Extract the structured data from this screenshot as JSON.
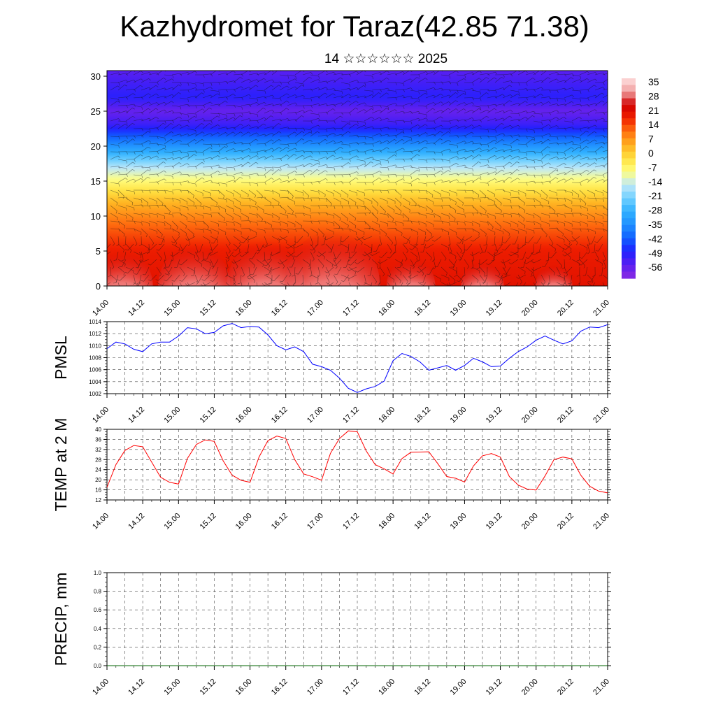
{
  "title": "Kazhydromet for Taraz(42.85 71.38)",
  "subtitle": "14 ☆☆☆☆☆☆ 2025",
  "time_labels": [
    "14.00",
    "14.12",
    "15.00",
    "15.12",
    "16.00",
    "16.12",
    "17.00",
    "17.12",
    "18.00",
    "18.12",
    "19.00",
    "19.12",
    "20.00",
    "20.12",
    "21.00"
  ],
  "colors": {
    "pmsl_line": "#0000ff",
    "temp_line": "#ff0000",
    "precip_line": "#006400",
    "frame": "#000000"
  },
  "chart_data": [
    {
      "id": "cross_section",
      "type": "heatmap",
      "title": "",
      "xlabel": "",
      "ylabel": "",
      "x_ticks": [
        "14.00",
        "14.12",
        "15.00",
        "15.12",
        "16.00",
        "16.12",
        "17.00",
        "17.12",
        "18.00",
        "18.12",
        "19.00",
        "19.12",
        "20.00",
        "20.12",
        "21.00"
      ],
      "y_ticks": [
        0,
        5,
        10,
        15,
        20,
        25,
        30
      ],
      "ylim": [
        0,
        30.8
      ],
      "colorbar_labels": [
        "35",
        "28",
        "21",
        "14",
        "7",
        "0",
        "-7",
        "-14",
        "-21",
        "-28",
        "-35",
        "-42",
        "-49",
        "-56"
      ],
      "colorbar_range": [
        -63,
        42
      ],
      "colormap": [
        {
          "v": -63,
          "c": "#8a2be2"
        },
        {
          "v": -56,
          "c": "#5a1ff0"
        },
        {
          "v": -49,
          "c": "#2020ff"
        },
        {
          "v": -42,
          "c": "#1060ff"
        },
        {
          "v": -35,
          "c": "#2090ff"
        },
        {
          "v": -28,
          "c": "#30b0ff"
        },
        {
          "v": -21,
          "c": "#70d0ff"
        },
        {
          "v": -14,
          "c": "#c0e8f8"
        },
        {
          "v": -7,
          "c": "#ffff80"
        },
        {
          "v": 0,
          "c": "#ffe040"
        },
        {
          "v": 7,
          "c": "#ffb020"
        },
        {
          "v": 14,
          "c": "#ff7010"
        },
        {
          "v": 21,
          "c": "#f02000"
        },
        {
          "v": 28,
          "c": "#d00000"
        },
        {
          "v": 35,
          "c": "#f0a0a0"
        },
        {
          "v": 42,
          "c": "#ffe0e0"
        }
      ],
      "profile": [
        {
          "h": 0,
          "t": 24
        },
        {
          "h": 5,
          "t": 22
        },
        {
          "h": 9,
          "t": 14
        },
        {
          "h": 12,
          "t": 6
        },
        {
          "h": 15,
          "t": -6
        },
        {
          "h": 17,
          "t": -15
        },
        {
          "h": 20,
          "t": -34
        },
        {
          "h": 23,
          "t": -52
        },
        {
          "h": 25,
          "t": -58
        },
        {
          "h": 27,
          "t": -50
        },
        {
          "h": 30.8,
          "t": -56
        }
      ],
      "warm_domes": [
        {
          "day": 14.22,
          "peak": 34
        },
        {
          "day": 15.22,
          "peak": 36
        },
        {
          "day": 16.22,
          "peak": 37
        },
        {
          "day": 17.15,
          "peak": 40
        },
        {
          "day": 18.25,
          "peak": 32
        },
        {
          "day": 19.25,
          "peak": 31
        },
        {
          "day": 20.25,
          "peak": 30
        }
      ]
    },
    {
      "id": "pmsl",
      "type": "line",
      "ylabel": "PMSL",
      "ylim": [
        1002,
        1014
      ],
      "y_ticks": [
        1002,
        1004,
        1006,
        1008,
        1010,
        1012,
        1014
      ],
      "x_ticks": [
        "14.00",
        "14.12",
        "15.00",
        "15.12",
        "16.00",
        "16.12",
        "17.00",
        "17.12",
        "18.00",
        "18.12",
        "19.00",
        "19.12",
        "20.00",
        "20.12",
        "21.00"
      ],
      "grid": true,
      "series": [
        {
          "values": [
            {
              "x": 14.0,
              "y": 1009.5
            },
            {
              "x": 14.125,
              "y": 1010.6
            },
            {
              "x": 14.25,
              "y": 1010.3
            },
            {
              "x": 14.375,
              "y": 1009.4
            },
            {
              "x": 14.5,
              "y": 1009.0
            },
            {
              "x": 14.625,
              "y": 1010.3
            },
            {
              "x": 14.75,
              "y": 1010.6
            },
            {
              "x": 14.875,
              "y": 1010.6
            },
            {
              "x": 15.0,
              "y": 1011.6
            },
            {
              "x": 15.125,
              "y": 1013.0
            },
            {
              "x": 15.25,
              "y": 1012.8
            },
            {
              "x": 15.375,
              "y": 1012.0
            },
            {
              "x": 15.5,
              "y": 1012.2
            },
            {
              "x": 15.625,
              "y": 1013.3
            },
            {
              "x": 15.75,
              "y": 1013.7
            },
            {
              "x": 15.875,
              "y": 1013.0
            },
            {
              "x": 16.0,
              "y": 1013.2
            },
            {
              "x": 16.125,
              "y": 1013.1
            },
            {
              "x": 16.25,
              "y": 1011.8
            },
            {
              "x": 16.375,
              "y": 1010.0
            },
            {
              "x": 16.5,
              "y": 1009.3
            },
            {
              "x": 16.625,
              "y": 1009.8
            },
            {
              "x": 16.75,
              "y": 1009.0
            },
            {
              "x": 16.875,
              "y": 1006.9
            },
            {
              "x": 17.0,
              "y": 1006.5
            },
            {
              "x": 17.125,
              "y": 1005.9
            },
            {
              "x": 17.25,
              "y": 1004.6
            },
            {
              "x": 17.375,
              "y": 1002.9
            },
            {
              "x": 17.5,
              "y": 1002.2
            },
            {
              "x": 17.625,
              "y": 1002.8
            },
            {
              "x": 17.75,
              "y": 1003.2
            },
            {
              "x": 17.875,
              "y": 1004.1
            },
            {
              "x": 18.0,
              "y": 1007.5
            },
            {
              "x": 18.125,
              "y": 1008.7
            },
            {
              "x": 18.25,
              "y": 1008.2
            },
            {
              "x": 18.375,
              "y": 1007.3
            },
            {
              "x": 18.5,
              "y": 1005.9
            },
            {
              "x": 18.625,
              "y": 1006.3
            },
            {
              "x": 18.75,
              "y": 1006.7
            },
            {
              "x": 18.875,
              "y": 1005.9
            },
            {
              "x": 19.0,
              "y": 1006.7
            },
            {
              "x": 19.125,
              "y": 1007.9
            },
            {
              "x": 19.25,
              "y": 1007.3
            },
            {
              "x": 19.375,
              "y": 1006.5
            },
            {
              "x": 19.5,
              "y": 1006.6
            },
            {
              "x": 19.625,
              "y": 1007.9
            },
            {
              "x": 19.75,
              "y": 1009.0
            },
            {
              "x": 19.875,
              "y": 1009.8
            },
            {
              "x": 20.0,
              "y": 1010.9
            },
            {
              "x": 20.125,
              "y": 1011.6
            },
            {
              "x": 20.25,
              "y": 1010.9
            },
            {
              "x": 20.375,
              "y": 1010.3
            },
            {
              "x": 20.5,
              "y": 1010.8
            },
            {
              "x": 20.625,
              "y": 1012.4
            },
            {
              "x": 20.75,
              "y": 1013.1
            },
            {
              "x": 20.875,
              "y": 1013.0
            },
            {
              "x": 21.0,
              "y": 1013.5
            }
          ]
        }
      ]
    },
    {
      "id": "temp2m",
      "type": "line",
      "ylabel": "TEMP at 2 M",
      "ylim": [
        12,
        40
      ],
      "y_ticks": [
        12,
        16,
        20,
        24,
        28,
        32,
        36,
        40
      ],
      "x_ticks": [
        "14.00",
        "14.12",
        "15.00",
        "15.12",
        "16.00",
        "16.12",
        "17.00",
        "17.12",
        "18.00",
        "18.12",
        "19.00",
        "19.12",
        "20.00",
        "20.12",
        "21.00"
      ],
      "grid": true,
      "series": [
        {
          "values": [
            {
              "x": 14.0,
              "y": 17.0
            },
            {
              "x": 14.125,
              "y": 26.0
            },
            {
              "x": 14.25,
              "y": 31.6
            },
            {
              "x": 14.375,
              "y": 33.6
            },
            {
              "x": 14.5,
              "y": 33.1
            },
            {
              "x": 14.625,
              "y": 27.0
            },
            {
              "x": 14.75,
              "y": 21.0
            },
            {
              "x": 14.875,
              "y": 19.0
            },
            {
              "x": 15.0,
              "y": 18.3
            },
            {
              "x": 15.125,
              "y": 28.5
            },
            {
              "x": 15.25,
              "y": 34.0
            },
            {
              "x": 15.375,
              "y": 35.8
            },
            {
              "x": 15.5,
              "y": 35.2
            },
            {
              "x": 15.625,
              "y": 27.5
            },
            {
              "x": 15.75,
              "y": 21.8
            },
            {
              "x": 15.875,
              "y": 19.8
            },
            {
              "x": 16.0,
              "y": 19.0
            },
            {
              "x": 16.125,
              "y": 29.0
            },
            {
              "x": 16.25,
              "y": 35.5
            },
            {
              "x": 16.375,
              "y": 37.3
            },
            {
              "x": 16.5,
              "y": 36.4
            },
            {
              "x": 16.625,
              "y": 28.0
            },
            {
              "x": 16.75,
              "y": 22.3
            },
            {
              "x": 16.875,
              "y": 21.2
            },
            {
              "x": 17.0,
              "y": 19.8
            },
            {
              "x": 17.125,
              "y": 30.5
            },
            {
              "x": 17.25,
              "y": 36.3
            },
            {
              "x": 17.375,
              "y": 39.4
            },
            {
              "x": 17.5,
              "y": 39.0
            },
            {
              "x": 17.625,
              "y": 31.4
            },
            {
              "x": 17.75,
              "y": 26.0
            },
            {
              "x": 17.875,
              "y": 24.3
            },
            {
              "x": 18.0,
              "y": 22.3
            },
            {
              "x": 18.125,
              "y": 28.4
            },
            {
              "x": 18.25,
              "y": 30.9
            },
            {
              "x": 18.375,
              "y": 31.0
            },
            {
              "x": 18.5,
              "y": 31.1
            },
            {
              "x": 18.625,
              "y": 26.4
            },
            {
              "x": 18.75,
              "y": 21.3
            },
            {
              "x": 18.875,
              "y": 20.6
            },
            {
              "x": 19.0,
              "y": 19.1
            },
            {
              "x": 19.125,
              "y": 25.5
            },
            {
              "x": 19.25,
              "y": 29.5
            },
            {
              "x": 19.375,
              "y": 30.4
            },
            {
              "x": 19.5,
              "y": 29.0
            },
            {
              "x": 19.625,
              "y": 21.3
            },
            {
              "x": 19.75,
              "y": 17.9
            },
            {
              "x": 19.875,
              "y": 16.3
            },
            {
              "x": 20.0,
              "y": 15.9
            },
            {
              "x": 20.125,
              "y": 21.5
            },
            {
              "x": 20.25,
              "y": 28.0
            },
            {
              "x": 20.375,
              "y": 29.0
            },
            {
              "x": 20.5,
              "y": 28.3
            },
            {
              "x": 20.625,
              "y": 21.8
            },
            {
              "x": 20.75,
              "y": 17.4
            },
            {
              "x": 20.875,
              "y": 15.5
            },
            {
              "x": 21.0,
              "y": 14.8
            }
          ]
        }
      ]
    },
    {
      "id": "precip",
      "type": "line",
      "ylabel": "PRECIP, mm",
      "ylim": [
        0,
        1
      ],
      "y_ticks": [
        "0.0",
        "0.2",
        "0.4",
        "0.6",
        "0.8",
        "1.0"
      ],
      "x_ticks": [
        "14.00",
        "14.12",
        "15.00",
        "15.12",
        "16.00",
        "16.12",
        "17.00",
        "17.12",
        "18.00",
        "18.12",
        "19.00",
        "19.12",
        "20.00",
        "20.12",
        "21.00"
      ],
      "grid": true,
      "series": [
        {
          "values": [
            {
              "x": 14.0,
              "y": 0
            },
            {
              "x": 21.0,
              "y": 0
            }
          ]
        }
      ]
    }
  ]
}
